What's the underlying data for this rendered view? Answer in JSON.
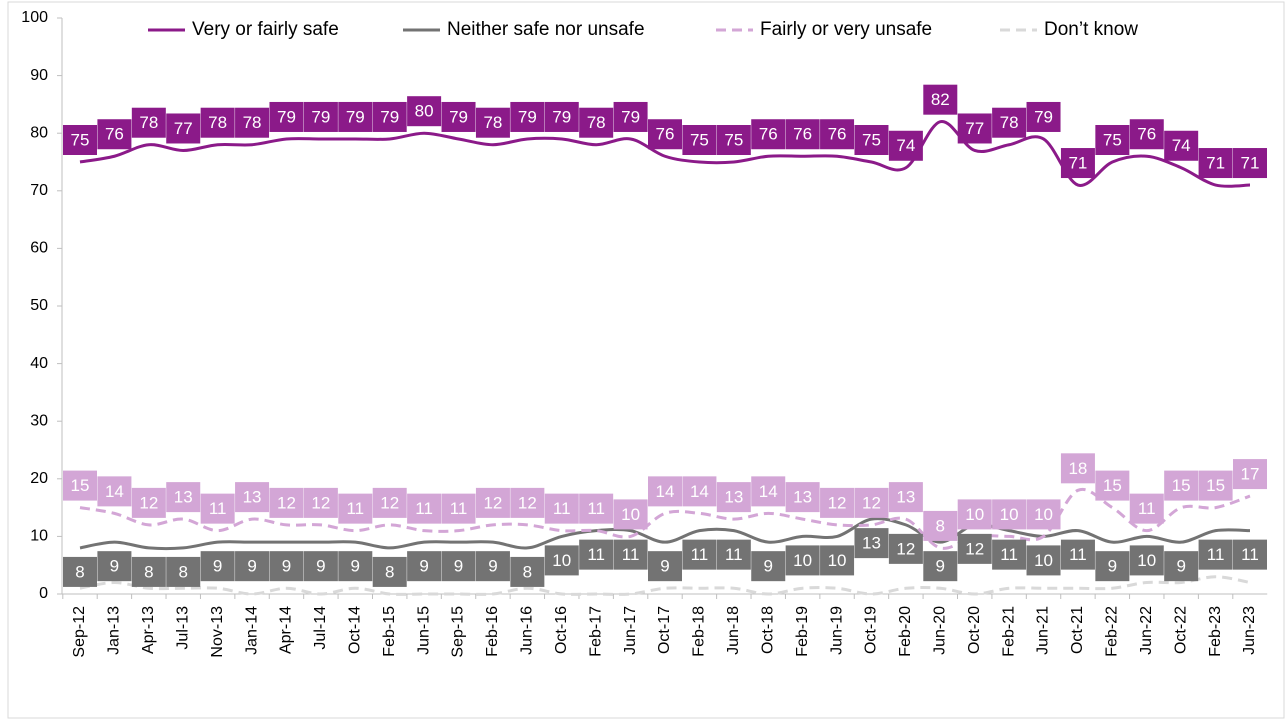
{
  "chart_data": {
    "type": "line",
    "categories": [
      "Sep-12",
      "Jan-13",
      "Apr-13",
      "Jul-13",
      "Nov-13",
      "Jan-14",
      "Apr-14",
      "Jul-14",
      "Oct-14",
      "Feb-15",
      "Jun-15",
      "Sep-15",
      "Feb-16",
      "Jun-16",
      "Oct-16",
      "Feb-17",
      "Jun-17",
      "Oct-17",
      "Feb-18",
      "Jun-18",
      "Oct-18",
      "Feb-19",
      "Jun-19",
      "Oct-19",
      "Feb-20",
      "Jun-20",
      "Oct-20",
      "Feb-21",
      "Jun-21",
      "Oct-21",
      "Feb-22",
      "Jun-22",
      "Oct-22",
      "Feb-23",
      "Jun-23"
    ],
    "series": [
      {
        "name": "Very or fairly safe",
        "color": "#8b1a89",
        "dashed": false,
        "labels": true,
        "values": [
          75,
          76,
          78,
          77,
          78,
          78,
          79,
          79,
          79,
          79,
          80,
          79,
          78,
          79,
          79,
          78,
          79,
          76,
          75,
          75,
          76,
          76,
          76,
          75,
          74,
          82,
          77,
          78,
          79,
          71,
          75,
          76,
          74,
          71,
          71
        ]
      },
      {
        "name": "Neither safe nor unsafe",
        "color": "#737373",
        "dashed": false,
        "labels": true,
        "values": [
          8,
          9,
          8,
          8,
          9,
          9,
          9,
          9,
          9,
          8,
          9,
          9,
          9,
          8,
          10,
          11,
          11,
          9,
          11,
          11,
          9,
          10,
          10,
          13,
          12,
          9,
          12,
          11,
          10,
          11,
          9,
          10,
          9,
          11,
          11
        ]
      },
      {
        "name": "Fairly or very unsafe",
        "color": "#d3a6d6",
        "dashed": true,
        "labels": true,
        "values": [
          15,
          14,
          12,
          13,
          11,
          13,
          12,
          12,
          11,
          12,
          11,
          11,
          12,
          12,
          11,
          11,
          10,
          14,
          14,
          13,
          14,
          13,
          12,
          12,
          13,
          8,
          10,
          10,
          10,
          18,
          15,
          11,
          15,
          15,
          17
        ]
      },
      {
        "name": "Don’t know",
        "color": "#d9d9d9",
        "dashed": true,
        "labels": false,
        "values": [
          1,
          2,
          1,
          1,
          1,
          0,
          1,
          0,
          1,
          0,
          0,
          0,
          0,
          1,
          0,
          0,
          0,
          1,
          1,
          1,
          0,
          1,
          1,
          0,
          1,
          1,
          0,
          1,
          1,
          1,
          1,
          2,
          2,
          3,
          2
        ]
      }
    ],
    "ylim": [
      0,
      100
    ],
    "yticks": [
      0,
      10,
      20,
      30,
      40,
      50,
      60,
      70,
      80,
      90,
      100
    ],
    "grid": false,
    "legend": "top"
  }
}
